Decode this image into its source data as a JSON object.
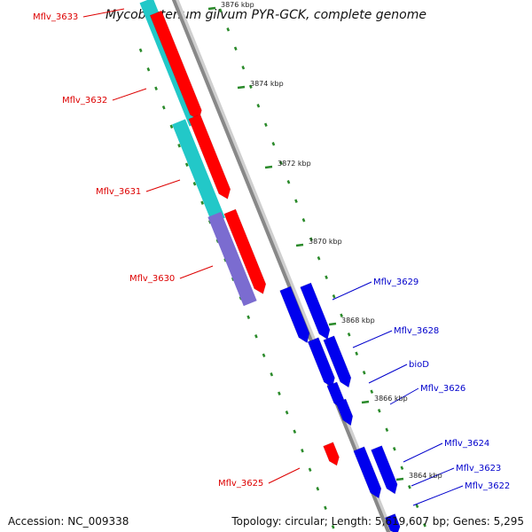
{
  "title": "Mycobacterium gilvum PYR-GCK, complete genome",
  "accession": "Accession: NC_009338",
  "topology": "Topology: circular; Length: 5,619,607 bp; Genes: 5,295",
  "colors": {
    "red": "#ff0000",
    "cyan": "#22c8c8",
    "purple": "#7b6cd0",
    "blue": "#0000ee",
    "backbone": "#888888",
    "ticks": "#2a8a2a",
    "label_red": "#dd0000",
    "label_blue": "#0000cc"
  },
  "kbp_labels": [
    "3876 kbp",
    "3874 kbp",
    "3872 kbp",
    "3870 kbp",
    "3868 kbp",
    "3866 kbp",
    "3864 kbp"
  ],
  "genes_left": [
    {
      "label": "Mflv_3633",
      "color": "red"
    },
    {
      "label": "Mflv_3632",
      "color": "red"
    },
    {
      "label": "Mflv_3631",
      "color": "red"
    },
    {
      "label": "Mflv_3630",
      "color": "red"
    },
    {
      "label": "Mflv_3625",
      "color": "red"
    }
  ],
  "genes_right": [
    {
      "label": "Mflv_3629",
      "color": "blue"
    },
    {
      "label": "Mflv_3628",
      "color": "blue"
    },
    {
      "label": "bioD",
      "color": "blue"
    },
    {
      "label": "Mflv_3626",
      "color": "blue"
    },
    {
      "label": "Mflv_3624",
      "color": "blue"
    },
    {
      "label": "Mflv_3623",
      "color": "blue"
    },
    {
      "label": "Mflv_3622",
      "color": "blue"
    }
  ]
}
